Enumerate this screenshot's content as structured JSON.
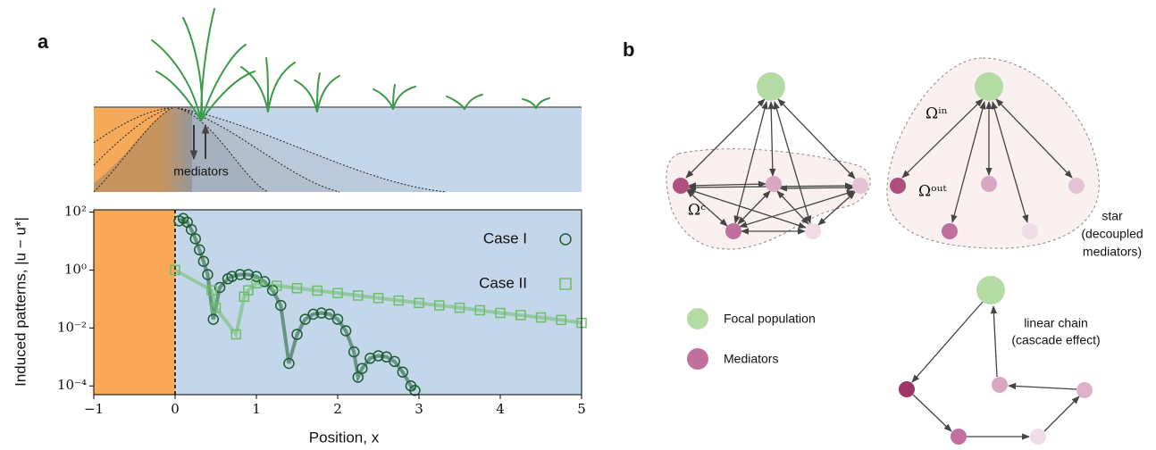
{
  "panel_a": {
    "label": "a",
    "illustration_text": "mediators"
  },
  "chart_data": {
    "type": "scatter",
    "xlabel": "Position, x",
    "ylabel": "Induced patterns, |u − u*|",
    "xlim": [
      -1,
      5
    ],
    "ylim": [
      5e-05,
      120
    ],
    "log_y": true,
    "legend_loc": "upper right",
    "xticks": [
      {
        "value": -1,
        "label": "−1"
      },
      0,
      1,
      2,
      3,
      4,
      5
    ],
    "yticks": [
      {
        "value": 100,
        "label": "10²"
      },
      {
        "value": 1,
        "label": "10⁰"
      },
      {
        "value": 0.01,
        "label": "10⁻²"
      },
      {
        "value": 0.0001,
        "label": "10⁻⁴"
      }
    ],
    "series": [
      {
        "name": "Case I",
        "color": "#1b5e30",
        "marker": "circle",
        "x": [
          0.05,
          0.1,
          0.15,
          0.2,
          0.25,
          0.3,
          0.35,
          0.4,
          0.47,
          0.55,
          0.65,
          0.7,
          0.8,
          0.9,
          1.0,
          1.1,
          1.2,
          1.3,
          1.4,
          1.5,
          1.6,
          1.7,
          1.8,
          1.9,
          2.0,
          2.1,
          2.2,
          2.25,
          2.3,
          2.4,
          2.5,
          2.6,
          2.7,
          2.8,
          2.9,
          2.95
        ],
        "values": [
          50,
          60,
          45,
          25,
          12,
          5,
          2,
          0.7,
          0.02,
          0.25,
          0.5,
          0.6,
          0.7,
          0.7,
          0.6,
          0.4,
          0.2,
          0.06,
          0.0006,
          0.006,
          0.02,
          0.03,
          0.033,
          0.03,
          0.02,
          0.008,
          0.0015,
          0.0002,
          0.0004,
          0.0009,
          0.0011,
          0.001,
          0.0007,
          0.0003,
          0.0001,
          7e-05
        ]
      },
      {
        "name": "Case II",
        "color": "#6cbf66",
        "marker": "square",
        "x": [
          0.0,
          0.45,
          0.5,
          0.75,
          0.85,
          0.9,
          1.0,
          1.25,
          1.5,
          1.75,
          2.0,
          2.25,
          2.5,
          2.75,
          3.0,
          3.25,
          3.5,
          3.75,
          4.0,
          4.25,
          4.5,
          4.75,
          5.0
        ],
        "values": [
          1,
          0.2,
          0.05,
          0.006,
          0.12,
          0.2,
          0.35,
          0.288,
          0.237,
          0.195,
          0.16,
          0.132,
          0.108,
          0.089,
          0.073,
          0.06,
          0.05,
          0.041,
          0.033,
          0.028,
          0.023,
          0.019,
          0.015
        ]
      }
    ]
  },
  "panel_b": {
    "label": "b",
    "complete": {
      "label": "Ωᶜ"
    },
    "star": {
      "in_label": "Ωⁱⁿ",
      "out_label": "Ωᵒᵘᵗ",
      "caption": [
        "star",
        "(decoupled",
        "mediators)"
      ]
    },
    "chain": {
      "caption": [
        "linear chain",
        "(cascade effect)"
      ]
    },
    "legend": [
      "Focal population",
      "Mediators"
    ]
  }
}
